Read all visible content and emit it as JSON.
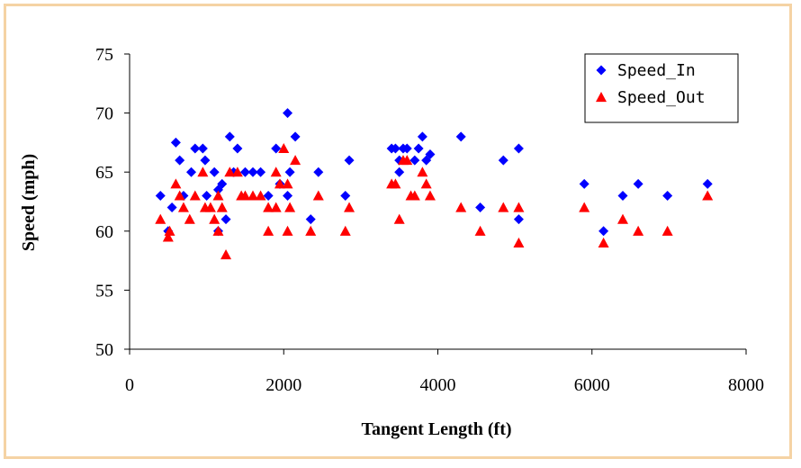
{
  "chart_data": {
    "type": "scatter",
    "title": "",
    "xlabel": "Tangent Length (ft)",
    "ylabel": "Speed (mph)",
    "xlim": [
      0,
      8000
    ],
    "ylim": [
      50,
      75
    ],
    "xticks": [
      0,
      2000,
      4000,
      6000,
      8000
    ],
    "yticks": [
      50,
      55,
      60,
      65,
      70,
      75
    ],
    "grid": false,
    "legend_position": "top-right",
    "series": [
      {
        "name": "Speed_In",
        "marker": "diamond",
        "color": "#0000ff",
        "points": [
          [
            400,
            63
          ],
          [
            500,
            60
          ],
          [
            550,
            62
          ],
          [
            600,
            67.5
          ],
          [
            650,
            66
          ],
          [
            700,
            63
          ],
          [
            800,
            65
          ],
          [
            850,
            67
          ],
          [
            950,
            67
          ],
          [
            980,
            66
          ],
          [
            1000,
            63
          ],
          [
            1100,
            65
          ],
          [
            1150,
            63.5
          ],
          [
            1150,
            60
          ],
          [
            1200,
            64
          ],
          [
            1250,
            61
          ],
          [
            1300,
            68
          ],
          [
            1350,
            65
          ],
          [
            1400,
            67
          ],
          [
            1500,
            65
          ],
          [
            1600,
            65
          ],
          [
            1700,
            65
          ],
          [
            1800,
            63
          ],
          [
            1900,
            67
          ],
          [
            1950,
            64
          ],
          [
            2050,
            70
          ],
          [
            2050,
            63
          ],
          [
            2080,
            65
          ],
          [
            2150,
            68
          ],
          [
            2350,
            61
          ],
          [
            2450,
            65
          ],
          [
            2800,
            63
          ],
          [
            2850,
            66
          ],
          [
            3400,
            67
          ],
          [
            3450,
            67
          ],
          [
            3500,
            65
          ],
          [
            3500,
            66
          ],
          [
            3550,
            67
          ],
          [
            3600,
            67
          ],
          [
            3700,
            66
          ],
          [
            3750,
            67
          ],
          [
            3800,
            68
          ],
          [
            3850,
            66
          ],
          [
            3900,
            66.5
          ],
          [
            4300,
            68
          ],
          [
            4550,
            62
          ],
          [
            4850,
            66
          ],
          [
            5050,
            61
          ],
          [
            5050,
            67
          ],
          [
            5900,
            64
          ],
          [
            6150,
            60
          ],
          [
            6400,
            63
          ],
          [
            6600,
            64
          ],
          [
            6980,
            63
          ],
          [
            7500,
            64
          ]
        ]
      },
      {
        "name": "Speed_Out",
        "marker": "triangle",
        "color": "#ff0000",
        "points": [
          [
            400,
            61
          ],
          [
            500,
            59.5
          ],
          [
            520,
            60
          ],
          [
            600,
            64
          ],
          [
            650,
            63
          ],
          [
            700,
            62
          ],
          [
            780,
            61
          ],
          [
            850,
            63
          ],
          [
            950,
            65
          ],
          [
            980,
            62
          ],
          [
            1050,
            62
          ],
          [
            1100,
            61
          ],
          [
            1150,
            63
          ],
          [
            1150,
            60
          ],
          [
            1200,
            62
          ],
          [
            1250,
            58
          ],
          [
            1300,
            65
          ],
          [
            1400,
            65
          ],
          [
            1450,
            63
          ],
          [
            1500,
            63
          ],
          [
            1600,
            63
          ],
          [
            1700,
            63
          ],
          [
            1800,
            60
          ],
          [
            1800,
            62
          ],
          [
            1900,
            62
          ],
          [
            1900,
            65
          ],
          [
            1950,
            64
          ],
          [
            2000,
            67
          ],
          [
            2050,
            64
          ],
          [
            2050,
            60
          ],
          [
            2080,
            62
          ],
          [
            2150,
            66
          ],
          [
            2350,
            60
          ],
          [
            2450,
            63
          ],
          [
            2800,
            60
          ],
          [
            2850,
            62
          ],
          [
            3400,
            64
          ],
          [
            3450,
            64
          ],
          [
            3500,
            61
          ],
          [
            3550,
            66
          ],
          [
            3600,
            66
          ],
          [
            3650,
            63
          ],
          [
            3700,
            63
          ],
          [
            3800,
            65
          ],
          [
            3850,
            64
          ],
          [
            3900,
            63
          ],
          [
            4300,
            62
          ],
          [
            4550,
            60
          ],
          [
            4850,
            62
          ],
          [
            5050,
            59
          ],
          [
            5050,
            62
          ],
          [
            5900,
            62
          ],
          [
            6150,
            59
          ],
          [
            6400,
            61
          ],
          [
            6600,
            60
          ],
          [
            6980,
            60
          ],
          [
            7500,
            63
          ]
        ]
      }
    ]
  }
}
